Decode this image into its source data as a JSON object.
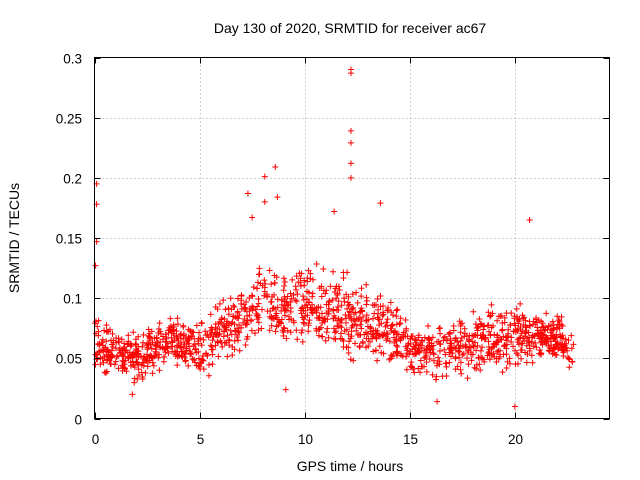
{
  "chart_data": {
    "type": "scatter",
    "title": "Day 130 of 2020, SRMTID for receiver ac67",
    "xlabel": "GPS time / hours",
    "ylabel": "SRMTID / TECUs",
    "xlim": [
      0,
      24.5
    ],
    "ylim": [
      0,
      0.3
    ],
    "xticks": [
      0,
      5,
      10,
      15,
      20
    ],
    "xtick_labels": [
      "0",
      "5",
      "10",
      "15",
      "20"
    ],
    "yticks": [
      0,
      0.05,
      0.1,
      0.15,
      0.2,
      0.25,
      0.3
    ],
    "ytick_labels": [
      "0",
      "0.05",
      "0.1",
      "0.15",
      "0.2",
      "0.25",
      "0.3"
    ],
    "grid": true,
    "marker": "+",
    "color": "#ff0000",
    "series": [
      {
        "name": "SRMTID",
        "notable_points": [
          {
            "x": 0.1,
            "y": 0.195
          },
          {
            "x": 0.1,
            "y": 0.178
          },
          {
            "x": 0.1,
            "y": 0.147
          },
          {
            "x": 0.05,
            "y": 0.127
          },
          {
            "x": 7.3,
            "y": 0.187
          },
          {
            "x": 7.5,
            "y": 0.167
          },
          {
            "x": 8.1,
            "y": 0.201
          },
          {
            "x": 8.1,
            "y": 0.18
          },
          {
            "x": 8.6,
            "y": 0.209
          },
          {
            "x": 8.7,
            "y": 0.184
          },
          {
            "x": 12.2,
            "y": 0.29
          },
          {
            "x": 12.2,
            "y": 0.287
          },
          {
            "x": 12.2,
            "y": 0.239
          },
          {
            "x": 12.2,
            "y": 0.229
          },
          {
            "x": 12.2,
            "y": 0.212
          },
          {
            "x": 12.2,
            "y": 0.2
          },
          {
            "x": 13.6,
            "y": 0.179
          },
          {
            "x": 11.4,
            "y": 0.172
          },
          {
            "x": 20.7,
            "y": 0.165
          },
          {
            "x": 20.0,
            "y": 0.01
          },
          {
            "x": 16.3,
            "y": 0.014
          },
          {
            "x": 1.8,
            "y": 0.02
          },
          {
            "x": 9.1,
            "y": 0.024
          }
        ],
        "trend": {
          "hours": [
            0,
            1,
            2,
            3,
            4,
            5,
            6,
            7,
            8,
            9,
            10,
            11,
            12,
            13,
            14,
            15,
            16,
            17,
            18,
            19,
            20,
            21,
            22,
            22.8
          ],
          "typical_values": [
            0.065,
            0.055,
            0.05,
            0.06,
            0.065,
            0.055,
            0.07,
            0.085,
            0.095,
            0.088,
            0.095,
            0.09,
            0.085,
            0.08,
            0.07,
            0.06,
            0.055,
            0.058,
            0.062,
            0.068,
            0.07,
            0.07,
            0.065,
            0.055
          ],
          "spread": [
            0.025,
            0.02,
            0.02,
            0.02,
            0.02,
            0.022,
            0.025,
            0.028,
            0.03,
            0.03,
            0.03,
            0.03,
            0.03,
            0.028,
            0.025,
            0.022,
            0.022,
            0.022,
            0.025,
            0.025,
            0.025,
            0.022,
            0.02,
            0.018
          ]
        }
      }
    ]
  }
}
